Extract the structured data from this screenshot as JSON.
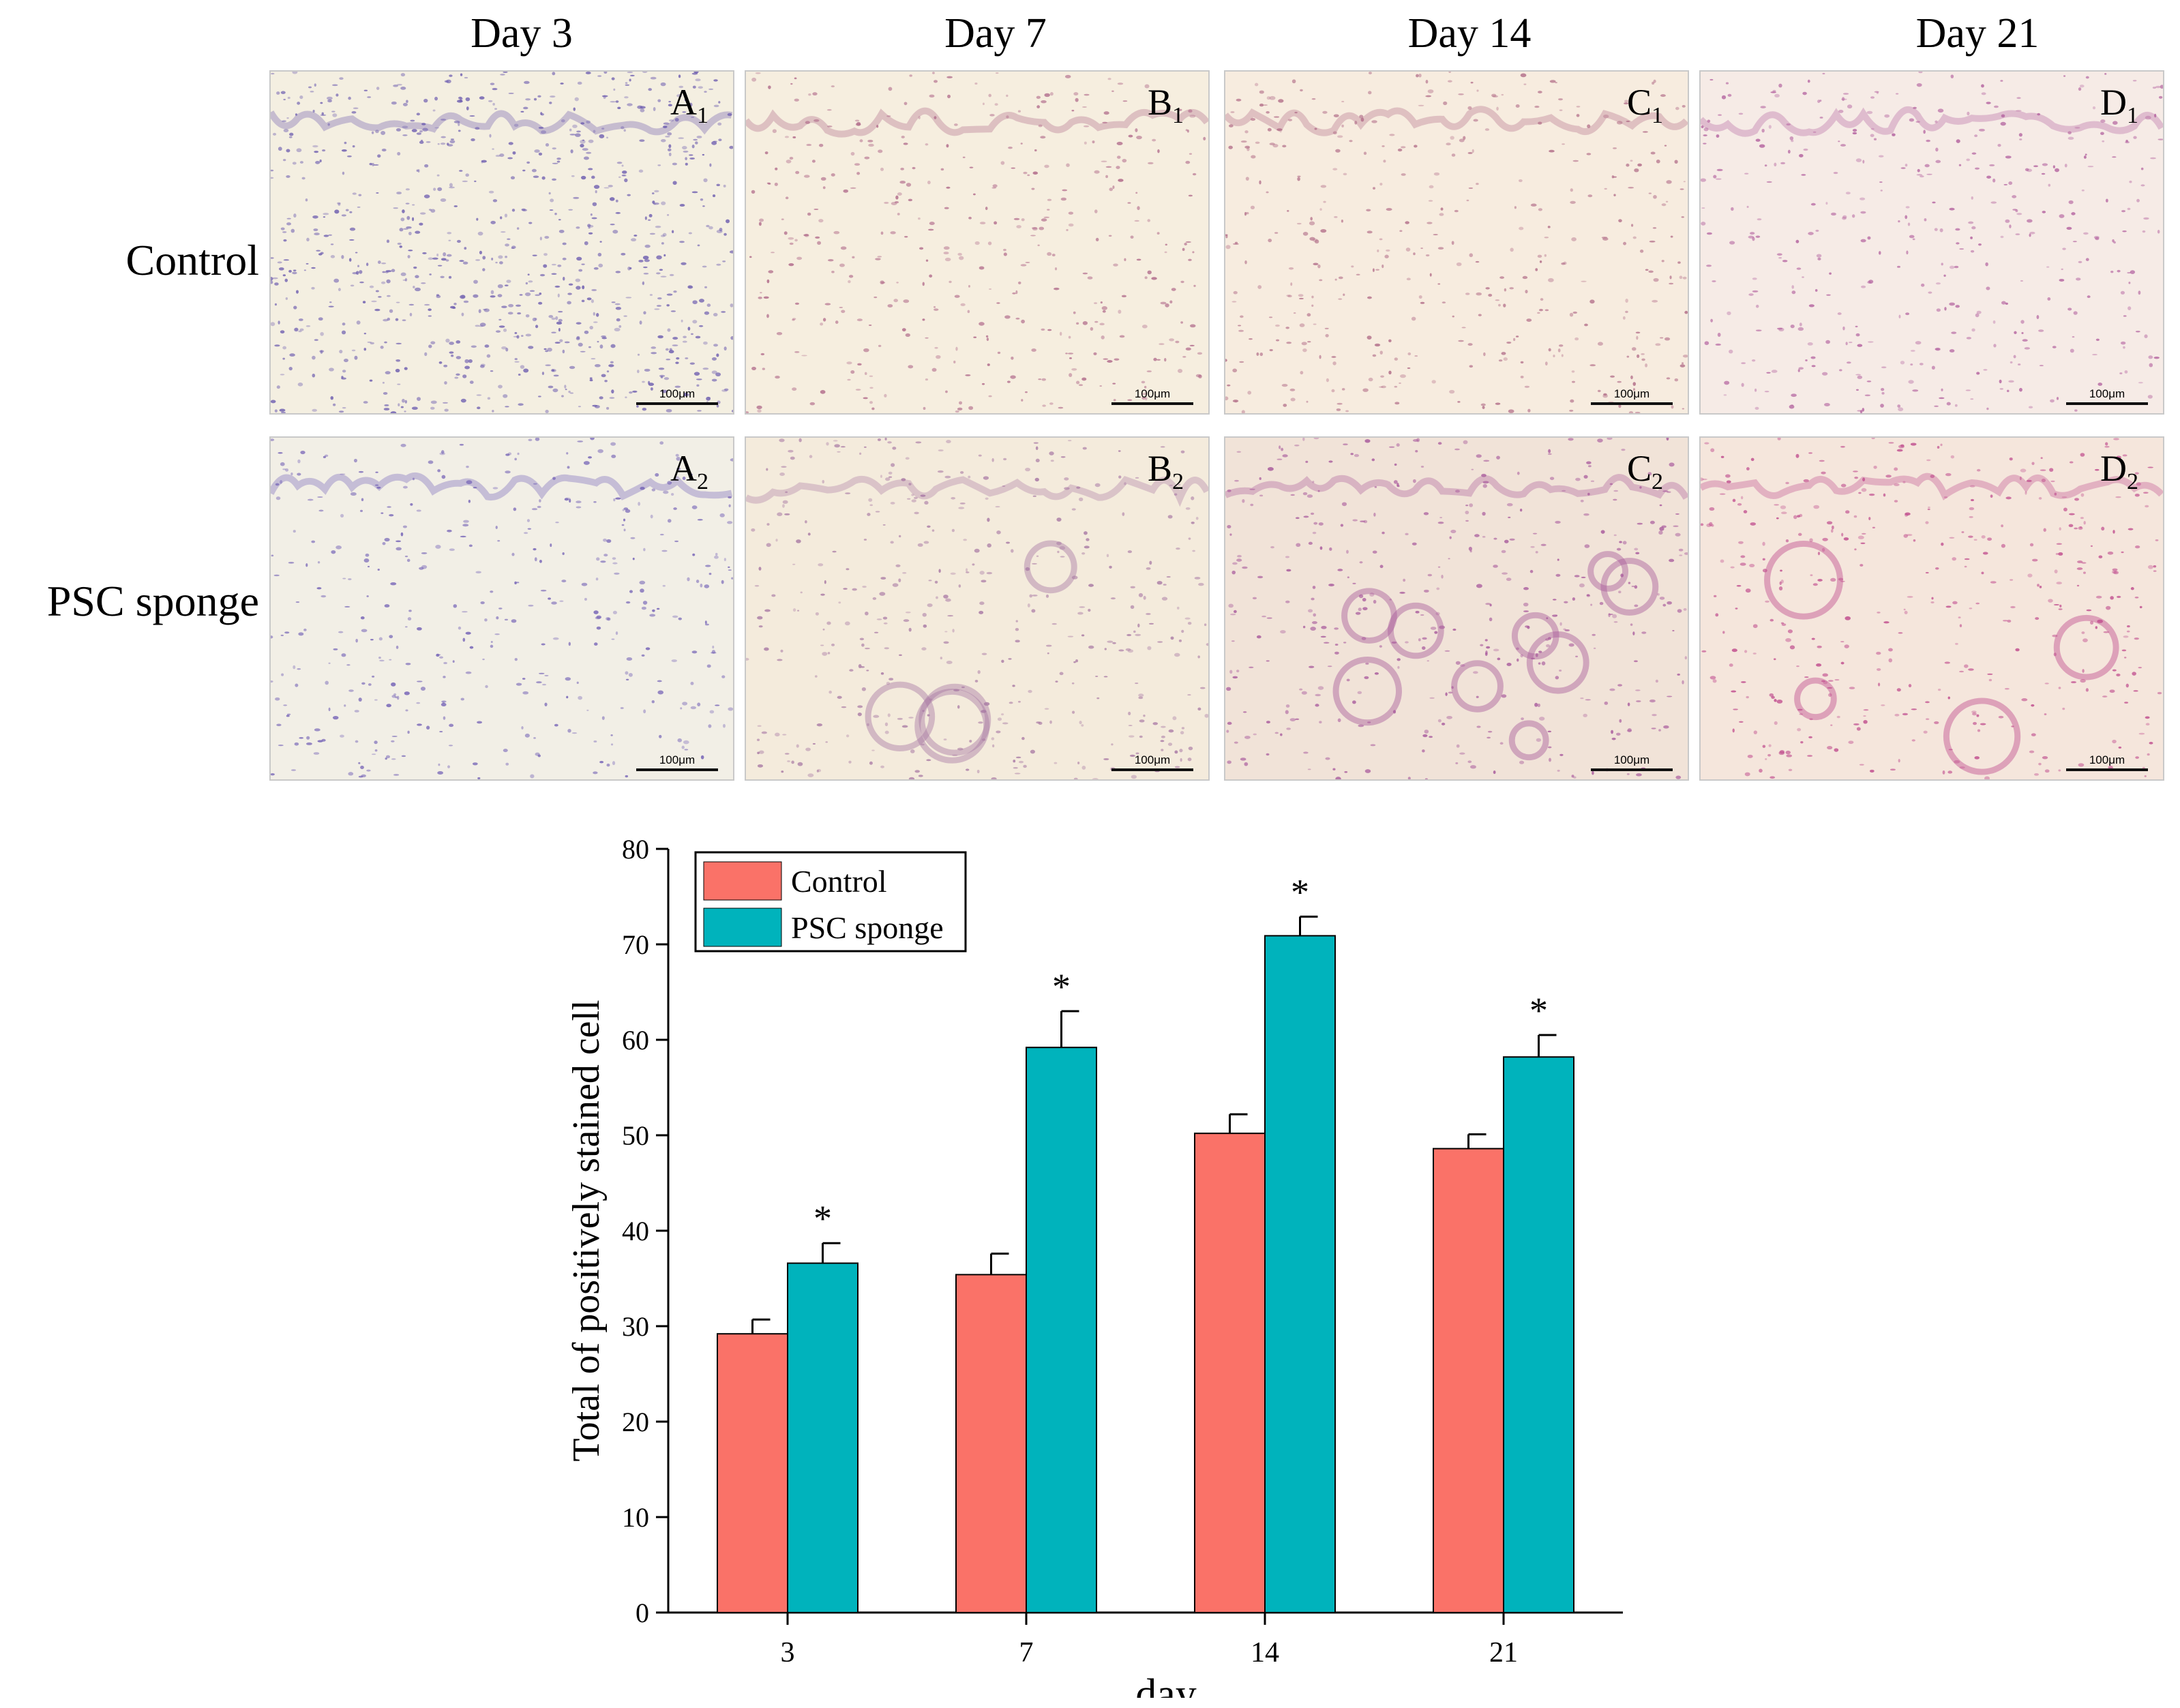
{
  "columns": [
    "Day 3",
    "Day 7",
    "Day 14",
    "Day 21"
  ],
  "rows": [
    "Control",
    "PSC sponge"
  ],
  "panels": [
    [
      {
        "letter": "A",
        "index": "1",
        "scale": "100μm"
      },
      {
        "letter": "B",
        "index": "1",
        "scale": "100μm"
      },
      {
        "letter": "C",
        "index": "1",
        "scale": "100μm"
      },
      {
        "letter": "D",
        "index": "1",
        "scale": "100μm"
      }
    ],
    [
      {
        "letter": "A",
        "index": "2",
        "scale": "100μm"
      },
      {
        "letter": "B",
        "index": "2",
        "scale": "100μm"
      },
      {
        "letter": "C",
        "index": "2",
        "scale": "100μm"
      },
      {
        "letter": "D",
        "index": "2",
        "scale": "100μm"
      }
    ]
  ],
  "chart_data": {
    "type": "bar",
    "categories": [
      "3",
      "7",
      "14",
      "21"
    ],
    "series": [
      {
        "name": "Control",
        "color": "#fa7268",
        "values": [
          29.2,
          35.4,
          50.2,
          48.6
        ],
        "errors": [
          1.5,
          2.2,
          2.0,
          1.5
        ]
      },
      {
        "name": "PSC sponge",
        "color": "#00b3bc",
        "values": [
          36.6,
          59.2,
          70.9,
          58.2
        ],
        "errors": [
          2.1,
          3.8,
          2.0,
          2.3
        ]
      }
    ],
    "significance": [
      "*",
      "*",
      "*",
      "*"
    ],
    "xlabel": "day",
    "ylabel": "Total of positively stained cell",
    "ylim": [
      0,
      80
    ],
    "yticks": [
      0,
      10,
      20,
      30,
      40,
      50,
      60,
      70,
      80
    ],
    "legend_position": "top-left",
    "grid": false
  }
}
